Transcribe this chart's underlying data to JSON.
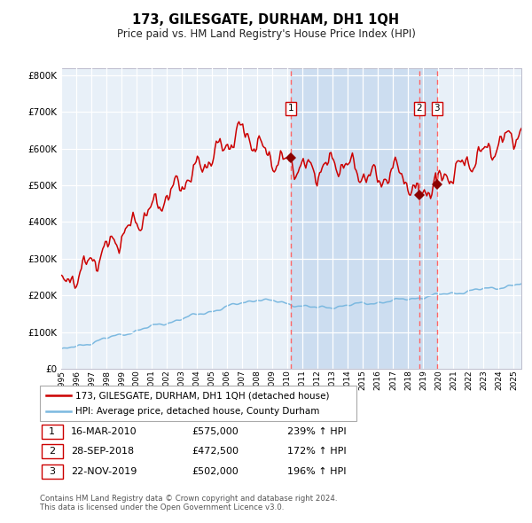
{
  "title": "173, GILESGATE, DURHAM, DH1 1QH",
  "subtitle": "Price paid vs. HM Land Registry's House Price Index (HPI)",
  "legend_line1": "173, GILESGATE, DURHAM, DH1 1QH (detached house)",
  "legend_line2": "HPI: Average price, detached house, County Durham",
  "sale1_date": "16-MAR-2010",
  "sale1_price": 575000,
  "sale1_pct": "239% ↑ HPI",
  "sale2_date": "28-SEP-2018",
  "sale2_price": 472500,
  "sale2_pct": "172% ↑ HPI",
  "sale3_date": "22-NOV-2019",
  "sale3_price": 502000,
  "sale3_pct": "196% ↑ HPI",
  "footer": "Contains HM Land Registry data © Crown copyright and database right 2024.\nThis data is licensed under the Open Government Licence v3.0.",
  "hpi_color": "#7cb9e0",
  "price_color": "#cc0000",
  "marker_color": "#8b0000",
  "vline_color": "#ff6666",
  "bg_plot": "#e8f0f8",
  "bg_highlight": "#ccddf0",
  "ylim": [
    0,
    820000
  ],
  "yticks": [
    0,
    100000,
    200000,
    300000,
    400000,
    500000,
    600000,
    700000,
    800000
  ],
  "sale1_x": 2010.21,
  "sale2_x": 2018.74,
  "sale3_x": 2019.9,
  "xmin": 1995,
  "xmax": 2025.5
}
